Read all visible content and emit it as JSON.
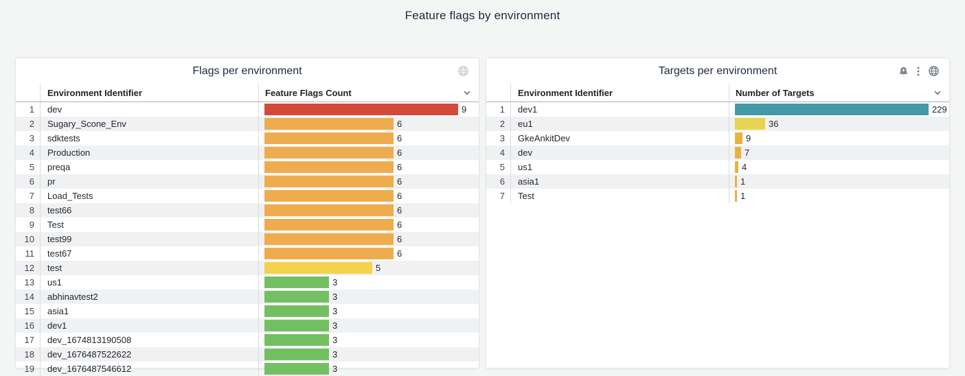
{
  "dashboard": {
    "title": "Feature flags by environment"
  },
  "colors": {
    "page_background": "#f4f5f5",
    "panel_background": "#ffffff",
    "row_stripe": "#f0f1f2",
    "red": "#d44a3a",
    "orange": "#efac4e",
    "yellow": "#f4d24e",
    "green": "#73c062",
    "teal": "#4399a4",
    "gold": "#e6b33e",
    "light_yellow": "#e8d54f"
  },
  "panels": [
    {
      "title": "Flags per environment",
      "header_icons": [
        "globe"
      ],
      "columns": {
        "env": "Environment Identifier",
        "value": "Feature Flags Count"
      },
      "max": 9,
      "rows": [
        {
          "i": 1,
          "env": "dev",
          "value": 9,
          "color": "#d44a3a"
        },
        {
          "i": 2,
          "env": "Sugary_Scone_Env",
          "value": 6,
          "color": "#efac4e"
        },
        {
          "i": 3,
          "env": "sdktests",
          "value": 6,
          "color": "#efac4e"
        },
        {
          "i": 4,
          "env": "Production",
          "value": 6,
          "color": "#efac4e"
        },
        {
          "i": 5,
          "env": "preqa",
          "value": 6,
          "color": "#efac4e"
        },
        {
          "i": 6,
          "env": "pr",
          "value": 6,
          "color": "#efac4e"
        },
        {
          "i": 7,
          "env": "Load_Tests",
          "value": 6,
          "color": "#efac4e"
        },
        {
          "i": 8,
          "env": "test66",
          "value": 6,
          "color": "#efac4e"
        },
        {
          "i": 9,
          "env": "Test",
          "value": 6,
          "color": "#efac4e"
        },
        {
          "i": 10,
          "env": "test99",
          "value": 6,
          "color": "#efac4e"
        },
        {
          "i": 11,
          "env": "test67",
          "value": 6,
          "color": "#efac4e"
        },
        {
          "i": 12,
          "env": "test",
          "value": 5,
          "color": "#f4d24e"
        },
        {
          "i": 13,
          "env": "us1",
          "value": 3,
          "color": "#73c062"
        },
        {
          "i": 14,
          "env": "abhinavtest2",
          "value": 3,
          "color": "#73c062"
        },
        {
          "i": 15,
          "env": "asia1",
          "value": 3,
          "color": "#73c062"
        },
        {
          "i": 16,
          "env": "dev1",
          "value": 3,
          "color": "#73c062"
        },
        {
          "i": 17,
          "env": "dev_1674813190508",
          "value": 3,
          "color": "#73c062"
        },
        {
          "i": 18,
          "env": "dev_1676487522622",
          "value": 3,
          "color": "#73c062"
        },
        {
          "i": 19,
          "env": "dev_1676487546612",
          "value": 3,
          "color": "#73c062"
        }
      ]
    },
    {
      "title": "Targets per environment",
      "header_icons": [
        "bell-plus",
        "kebab",
        "globe"
      ],
      "columns": {
        "env": "Environment Identifier",
        "value": "Number of Targets"
      },
      "max": 229,
      "rows": [
        {
          "i": 1,
          "env": "dev1",
          "value": 229,
          "color": "#4399a4"
        },
        {
          "i": 2,
          "env": "eu1",
          "value": 36,
          "color": "#e8d54f"
        },
        {
          "i": 3,
          "env": "GkeAnkitDev",
          "value": 9,
          "color": "#e6b33e"
        },
        {
          "i": 4,
          "env": "dev",
          "value": 7,
          "color": "#e6b33e"
        },
        {
          "i": 5,
          "env": "us1",
          "value": 4,
          "color": "#e6b33e"
        },
        {
          "i": 6,
          "env": "asia1",
          "value": 1,
          "color": "#e6b33e"
        },
        {
          "i": 7,
          "env": "Test",
          "value": 1,
          "color": "#e6b33e"
        }
      ]
    }
  ],
  "chart_data": [
    {
      "type": "bar",
      "orientation": "horizontal",
      "title": "Flags per environment",
      "categories": [
        "dev",
        "Sugary_Scone_Env",
        "sdktests",
        "Production",
        "preqa",
        "pr",
        "Load_Tests",
        "test66",
        "Test",
        "test99",
        "test67",
        "test",
        "us1",
        "abhinavtest2",
        "asia1",
        "dev1",
        "dev_1674813190508",
        "dev_1676487522622",
        "dev_1676487546612"
      ],
      "values": [
        9,
        6,
        6,
        6,
        6,
        6,
        6,
        6,
        6,
        6,
        6,
        5,
        3,
        3,
        3,
        3,
        3,
        3,
        3
      ],
      "xlabel": "Feature Flags Count",
      "ylabel": "Environment Identifier",
      "xlim": [
        0,
        9
      ],
      "grid": false,
      "legend": false
    },
    {
      "type": "bar",
      "orientation": "horizontal",
      "title": "Targets per environment",
      "categories": [
        "dev1",
        "eu1",
        "GkeAnkitDev",
        "dev",
        "us1",
        "asia1",
        "Test"
      ],
      "values": [
        229,
        36,
        9,
        7,
        4,
        1,
        1
      ],
      "xlabel": "Number of Targets",
      "ylabel": "Environment Identifier",
      "xlim": [
        0,
        229
      ],
      "grid": false,
      "legend": false
    }
  ]
}
